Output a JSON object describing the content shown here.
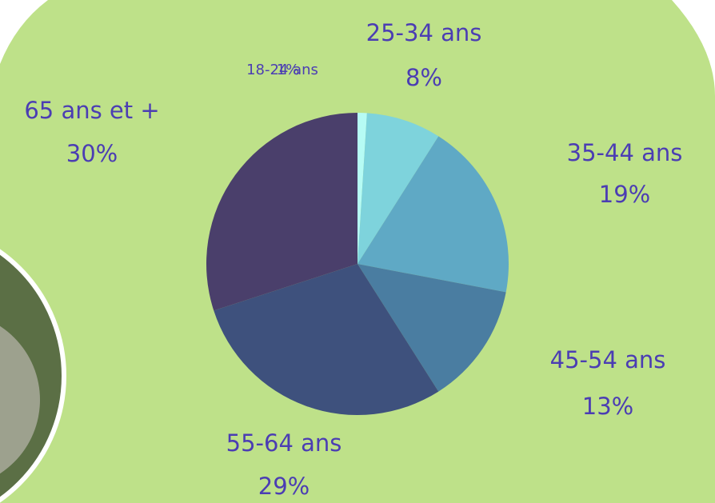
{
  "chart_data": {
    "type": "pie",
    "categories": [
      "18-24 ans",
      "25-34 ans",
      "35-44 ans",
      "45-54 ans",
      "55-64 ans",
      "65 ans et +"
    ],
    "values": [
      1,
      8,
      19,
      13,
      29,
      30
    ],
    "value_labels": [
      "1%",
      "8%",
      "19%",
      "13%",
      "29%",
      "30%"
    ],
    "colors": [
      "#b6fbf4",
      "#7ed3dc",
      "#5fa9c5",
      "#4a7da1",
      "#3e517d",
      "#4a3f6b"
    ]
  }
}
